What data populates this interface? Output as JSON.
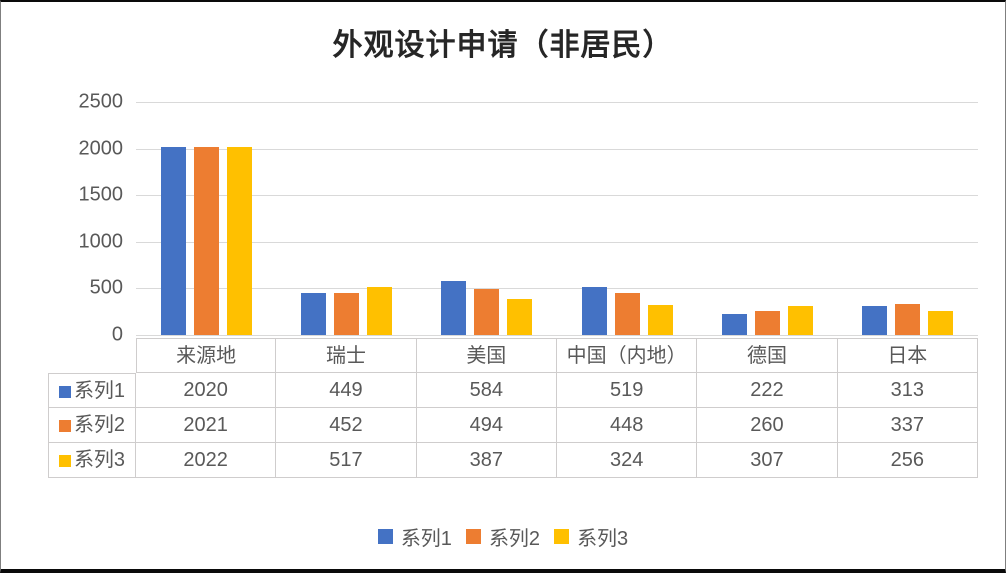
{
  "title": "外观设计申请（非居民）",
  "colors": {
    "series1": "#4472C4",
    "series2": "#ED7D31",
    "series3": "#FFC000",
    "gridline": "#D9D9D9",
    "table_border": "#CFCDCD",
    "text": "#595959",
    "title_text": "#262626"
  },
  "chart_data": {
    "type": "bar",
    "title": "外观设计申请（非居民）",
    "categories": [
      "来源地",
      "瑞士",
      "美国",
      "中国（内地）",
      "德国",
      "日本"
    ],
    "series": [
      {
        "name": "系列1",
        "color": "#4472C4",
        "values": [
          2020,
          449,
          584,
          519,
          222,
          313
        ]
      },
      {
        "name": "系列2",
        "color": "#ED7D31",
        "values": [
          2021,
          452,
          494,
          448,
          260,
          337
        ]
      },
      {
        "name": "系列3",
        "color": "#FFC000",
        "values": [
          2022,
          517,
          387,
          324,
          307,
          256
        ]
      }
    ],
    "xlabel": "",
    "ylabel": "",
    "ylim": [
      0,
      2500
    ],
    "yticks": [
      0,
      500,
      1000,
      1500,
      2000,
      2500
    ],
    "grid": true,
    "legend_position": "bottom",
    "legend_labels": [
      "系列1",
      "系列2",
      "系列3"
    ],
    "data_table_shown": true
  }
}
